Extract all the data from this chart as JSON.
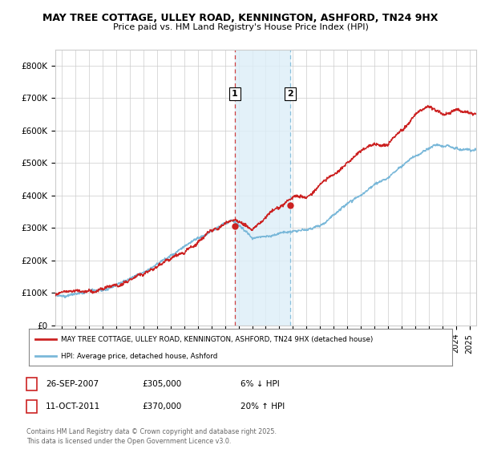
{
  "title": "MAY TREE COTTAGE, ULLEY ROAD, KENNINGTON, ASHFORD, TN24 9HX",
  "subtitle": "Price paid vs. HM Land Registry's House Price Index (HPI)",
  "hpi_color": "#7ab8d9",
  "price_color": "#cc2222",
  "background_color": "#ffffff",
  "plot_bg_color": "#ffffff",
  "ylabel_ticks": [
    "£0",
    "£100K",
    "£200K",
    "£300K",
    "£400K",
    "£500K",
    "£600K",
    "£700K",
    "£800K"
  ],
  "ytick_values": [
    0,
    100000,
    200000,
    300000,
    400000,
    500000,
    600000,
    700000,
    800000
  ],
  "ylim": [
    0,
    850000
  ],
  "xlim_start": 1994.5,
  "xlim_end": 2025.5,
  "purchase1_year": 2007.73,
  "purchase1_price": 305000,
  "purchase1_label": "1",
  "purchase1_date": "26-SEP-2007",
  "purchase1_pct": "6% ↓ HPI",
  "purchase2_year": 2011.78,
  "purchase2_price": 370000,
  "purchase2_label": "2",
  "purchase2_date": "11-OCT-2011",
  "purchase2_pct": "20% ↑ HPI",
  "legend_line1": "MAY TREE COTTAGE, ULLEY ROAD, KENNINGTON, ASHFORD, TN24 9HX (detached house)",
  "legend_line2": "HPI: Average price, detached house, Ashford",
  "footer": "Contains HM Land Registry data © Crown copyright and database right 2025.\nThis data is licensed under the Open Government Licence v3.0.",
  "grid_color": "#cccccc",
  "shaded_color": "#ddeef8"
}
